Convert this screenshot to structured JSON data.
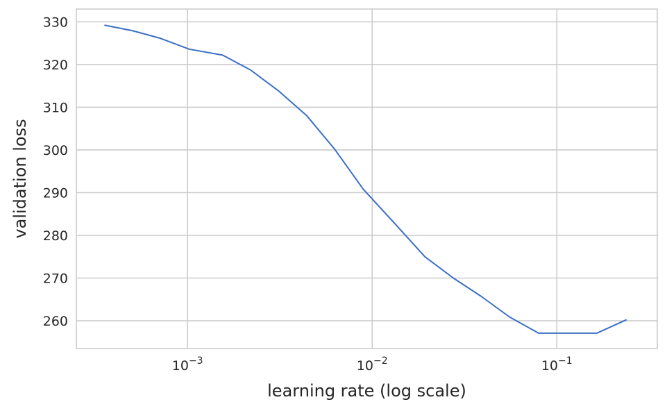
{
  "chart_data": {
    "type": "line",
    "xlabel": "learning rate (log scale)",
    "ylabel": "validation loss",
    "xscale": "log",
    "xlim": [
      0.00025,
      0.35
    ],
    "ylim": [
      253.5,
      333
    ],
    "grid": true,
    "x_ticks": [
      {
        "value": 0.001,
        "base": "10",
        "exp": "−3"
      },
      {
        "value": 0.01,
        "base": "10",
        "exp": "−2"
      },
      {
        "value": 0.1,
        "base": "10",
        "exp": "−1"
      }
    ],
    "y_ticks": [
      260,
      270,
      280,
      290,
      300,
      310,
      320,
      330
    ],
    "series": [
      {
        "color": "#3a6fc4",
        "x": [
          0.000357,
          0.000506,
          0.000717,
          0.00102,
          0.00155,
          0.0022,
          0.00312,
          0.00443,
          0.00629,
          0.00895,
          0.0133,
          0.0193,
          0.0275,
          0.039,
          0.0554,
          0.0797,
          0.116,
          0.165,
          0.237
        ],
        "y": [
          329.2,
          327.9,
          326.1,
          323.6,
          322.2,
          318.7,
          313.8,
          308.0,
          300.1,
          290.8,
          282.7,
          275.0,
          270.0,
          265.7,
          260.9,
          257.1,
          257.1,
          257.1,
          260.2
        ]
      }
    ]
  }
}
